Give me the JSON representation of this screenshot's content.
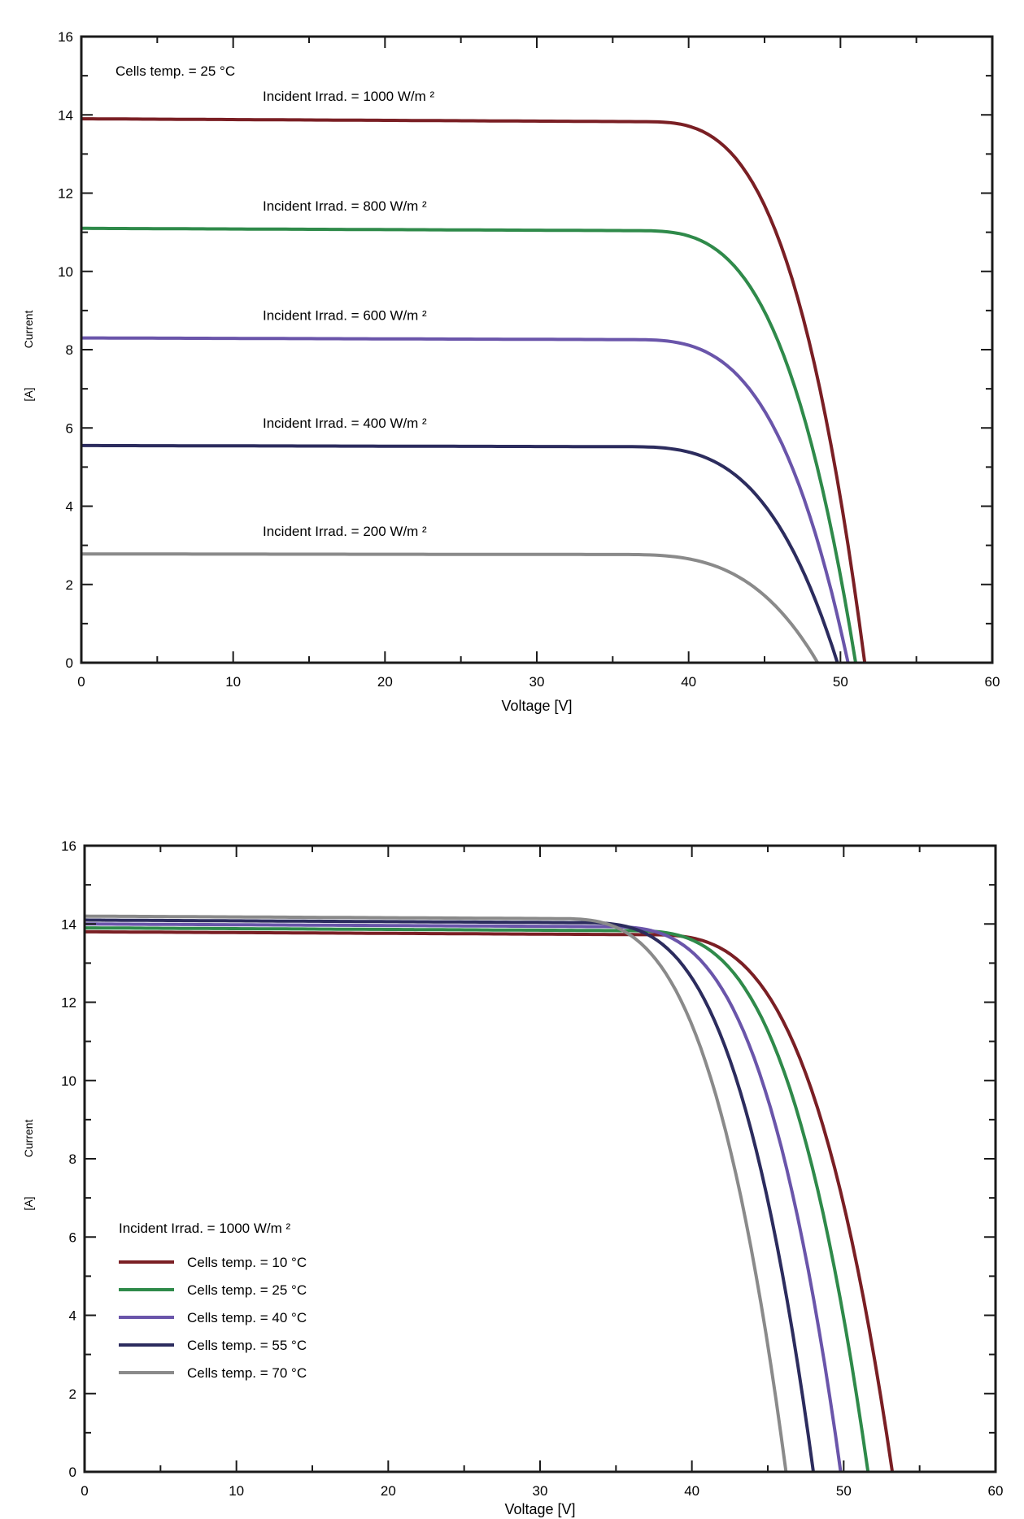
{
  "chart_data": [
    {
      "type": "line",
      "xlabel": "Voltage  [V]",
      "ylabel": "Current",
      "ylabel_unit": "[A]",
      "xlim": [
        0,
        60
      ],
      "ylim": [
        0,
        16
      ],
      "xticks": [
        0,
        10,
        20,
        30,
        40,
        50,
        60
      ],
      "yticks": [
        0,
        2,
        4,
        6,
        8,
        10,
        12,
        14,
        16
      ],
      "grid": false,
      "annotation_top": "Cells temp. = 25  °C",
      "series": [
        {
          "label": "Incident Irrad. = 1000 W/m ²",
          "color": "#7a1f24",
          "isc": 13.9,
          "voc": 51.6,
          "knee": 47
        },
        {
          "label": "Incident Irrad. = 800 W/m ²",
          "color": "#2f8a4a",
          "isc": 11.1,
          "voc": 51.0,
          "knee": 46.5
        },
        {
          "label": "Incident Irrad. = 600 W/m ²",
          "color": "#6a55aa",
          "isc": 8.3,
          "voc": 50.5,
          "knee": 46
        },
        {
          "label": "Incident Irrad. = 400 W/m ²",
          "color": "#2c2c5e",
          "isc": 5.55,
          "voc": 49.8,
          "knee": 45.5
        },
        {
          "label": "Incident Irrad. = 200 W/m ²",
          "color": "#8a8a8a",
          "isc": 2.78,
          "voc": 48.5,
          "knee": 45
        }
      ]
    },
    {
      "type": "line",
      "xlabel": "Voltage  [V]",
      "ylabel": "Current",
      "ylabel_unit": "[A]",
      "xlim": [
        0,
        60
      ],
      "ylim": [
        0,
        16
      ],
      "xticks": [
        0,
        10,
        20,
        30,
        40,
        50,
        60
      ],
      "yticks": [
        0,
        2,
        4,
        6,
        8,
        10,
        12,
        14,
        16
      ],
      "grid": false,
      "legend_title": "Incident Irrad. = 1000 W/m ²",
      "legend_position": "bottom-left",
      "series": [
        {
          "name": "Cells temp. = 10  °C",
          "color": "#7a1f24",
          "isc": 13.8,
          "voc": 53.2,
          "knee": 47
        },
        {
          "name": "Cells temp. = 25  °C",
          "color": "#2f8a4a",
          "isc": 13.9,
          "voc": 51.6,
          "knee": 45.5
        },
        {
          "name": "Cells temp. = 40  °C",
          "color": "#6a55aa",
          "isc": 14.0,
          "voc": 49.8,
          "knee": 43.5
        },
        {
          "name": "Cells temp. = 55  °C",
          "color": "#2c2c5e",
          "isc": 14.1,
          "voc": 48.0,
          "knee": 41.5
        },
        {
          "name": "Cells temp. = 70  °C",
          "color": "#8a8a8a",
          "isc": 14.2,
          "voc": 46.2,
          "knee": 39.5
        }
      ]
    }
  ]
}
